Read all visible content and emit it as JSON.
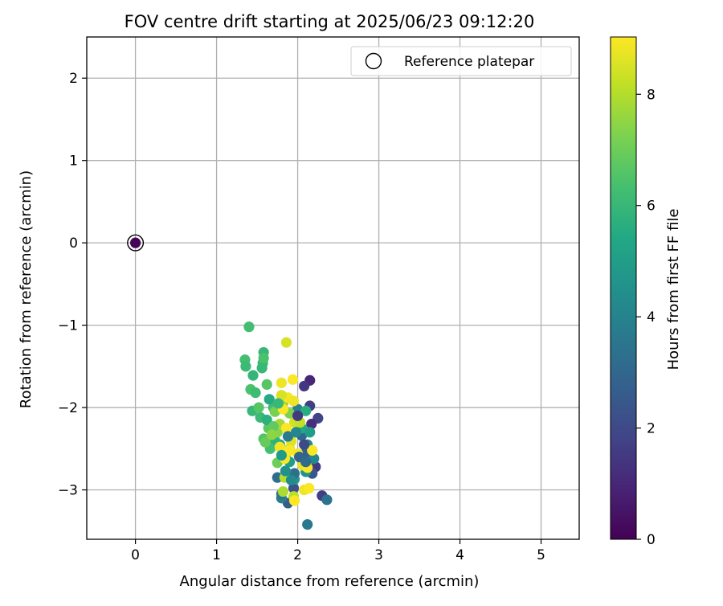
{
  "chart_data": {
    "type": "scatter",
    "title": "FOV centre drift starting at 2025/06/23 09:12:20",
    "xlabel": "Angular distance from reference (arcmin)",
    "ylabel": "Rotation from reference (arcmin)",
    "xlim": [
      -0.6,
      5.47
    ],
    "ylim": [
      -3.6,
      2.5
    ],
    "xticks": [
      0,
      1,
      2,
      3,
      4,
      5
    ],
    "yticks": [
      -3,
      -2,
      -1,
      0,
      1,
      2
    ],
    "grid": true,
    "legend": {
      "position": "top-right",
      "entries": [
        "Reference platepar"
      ]
    },
    "reference_point": {
      "x": 0.0,
      "y": 0.0,
      "hours": 0.1
    },
    "colorbar": {
      "label": "Hours from first FF file",
      "min": 0,
      "max": 9.03,
      "ticks": [
        0,
        2,
        4,
        6,
        8
      ]
    },
    "series": [
      {
        "points": [
          [
            2.15,
            -1.67,
            1.0
          ],
          [
            2.08,
            -1.74,
            1.4
          ],
          [
            2.15,
            -1.98,
            1.6
          ],
          [
            2.25,
            -2.13,
            1.8
          ],
          [
            2.17,
            -2.2,
            1.2
          ],
          [
            2.22,
            -2.72,
            1.5
          ],
          [
            2.3,
            -3.07,
            1.7
          ],
          [
            2.36,
            -3.12,
            3.4
          ],
          [
            2.12,
            -3.42,
            3.6
          ],
          [
            1.88,
            -3.16,
            2.6
          ],
          [
            2.18,
            -2.8,
            2.4
          ],
          [
            2.1,
            -2.55,
            2.8
          ],
          [
            2.05,
            -2.34,
            3.0
          ],
          [
            1.95,
            -2.98,
            2.2
          ],
          [
            1.75,
            -2.85,
            3.2
          ],
          [
            1.8,
            -3.1,
            3.8
          ],
          [
            1.8,
            -3.05,
            3.5
          ],
          [
            2.2,
            -2.62,
            4.2
          ],
          [
            2.12,
            -2.45,
            4.4
          ],
          [
            2.0,
            -2.02,
            4.0
          ],
          [
            2.1,
            -2.78,
            4.6
          ],
          [
            1.9,
            -2.66,
            5.0
          ],
          [
            1.78,
            -2.45,
            5.2
          ],
          [
            2.05,
            -2.25,
            5.4
          ],
          [
            1.96,
            -2.87,
            4.8
          ],
          [
            2.15,
            -2.3,
            5.0
          ],
          [
            2.1,
            -2.04,
            5.6
          ],
          [
            1.72,
            -2.4,
            5.8
          ],
          [
            1.58,
            -1.33,
            6.0
          ],
          [
            1.57,
            -1.46,
            6.2
          ],
          [
            1.35,
            -1.42,
            6.3
          ],
          [
            1.36,
            -1.5,
            6.1
          ],
          [
            1.45,
            -1.61,
            5.9
          ],
          [
            1.42,
            -1.78,
            6.4
          ],
          [
            1.48,
            -1.82,
            6.2
          ],
          [
            1.44,
            -2.04,
            6.0
          ],
          [
            1.58,
            -1.4,
            6.4
          ],
          [
            1.54,
            -2.12,
            6.1
          ],
          [
            1.58,
            -2.38,
            6.5
          ],
          [
            1.66,
            -2.5,
            6.3
          ],
          [
            1.52,
            -2.0,
            6.6
          ],
          [
            1.62,
            -1.72,
            6.6
          ],
          [
            1.64,
            -2.25,
            6.7
          ],
          [
            1.7,
            -2.0,
            6.2
          ],
          [
            1.6,
            -2.42,
            6.9
          ],
          [
            1.62,
            -2.15,
            5.7
          ],
          [
            1.65,
            -1.9,
            5.5
          ],
          [
            1.75,
            -2.67,
            7.0
          ],
          [
            1.72,
            -2.05,
            7.2
          ],
          [
            1.75,
            -2.3,
            7.4
          ],
          [
            1.82,
            -1.95,
            7.6
          ],
          [
            1.85,
            -2.58,
            7.1
          ],
          [
            1.78,
            -2.2,
            7.8
          ],
          [
            1.9,
            -2.07,
            7.3
          ],
          [
            1.86,
            -1.21,
            8.5
          ],
          [
            1.84,
            -2.85,
            8.0
          ],
          [
            1.82,
            -3.02,
            7.9
          ],
          [
            1.95,
            -3.08,
            8.1
          ],
          [
            1.9,
            -2.5,
            8.3
          ],
          [
            1.92,
            -2.41,
            8.6
          ],
          [
            1.96,
            -2.18,
            8.4
          ],
          [
            2.03,
            -2.18,
            8.2
          ],
          [
            2.06,
            -2.7,
            8.7
          ],
          [
            2.08,
            -3.0,
            8.8
          ],
          [
            1.88,
            -1.88,
            8.9
          ],
          [
            1.94,
            -1.66,
            9.0
          ],
          [
            1.8,
            -1.7,
            8.8
          ],
          [
            1.8,
            -1.85,
            8.5
          ],
          [
            1.78,
            -2.48,
            8.9
          ],
          [
            2.14,
            -2.98,
            9.0
          ],
          [
            1.84,
            -2.62,
            9.0
          ],
          [
            1.96,
            -3.13,
            9.0
          ],
          [
            2.18,
            -2.52,
            9.0
          ],
          [
            2.12,
            -2.73,
            9.0
          ],
          [
            1.9,
            -2.52,
            9.0
          ],
          [
            2.0,
            -2.56,
            8.9
          ],
          [
            1.86,
            -2.25,
            9.0
          ],
          [
            1.82,
            -2.02,
            9.0
          ],
          [
            1.95,
            -1.92,
            8.8
          ],
          [
            1.96,
            -2.8,
            3.3
          ],
          [
            2.02,
            -2.6,
            2.9
          ],
          [
            2.1,
            -2.66,
            3.1
          ],
          [
            1.88,
            -2.35,
            3.7
          ],
          [
            1.8,
            -2.58,
            4.9
          ],
          [
            1.85,
            -2.77,
            4.5
          ],
          [
            2.0,
            -2.1,
            1.5
          ],
          [
            2.08,
            -2.45,
            2.0
          ],
          [
            1.98,
            -2.3,
            4.1
          ],
          [
            1.92,
            -2.88,
            4.3
          ],
          [
            1.7,
            -2.23,
            6.8
          ],
          [
            1.76,
            -1.95,
            6.0
          ],
          [
            1.68,
            -2.33,
            7.5
          ],
          [
            1.4,
            -1.02,
            6.3
          ],
          [
            1.56,
            -1.52,
            6.0
          ]
        ]
      }
    ]
  }
}
